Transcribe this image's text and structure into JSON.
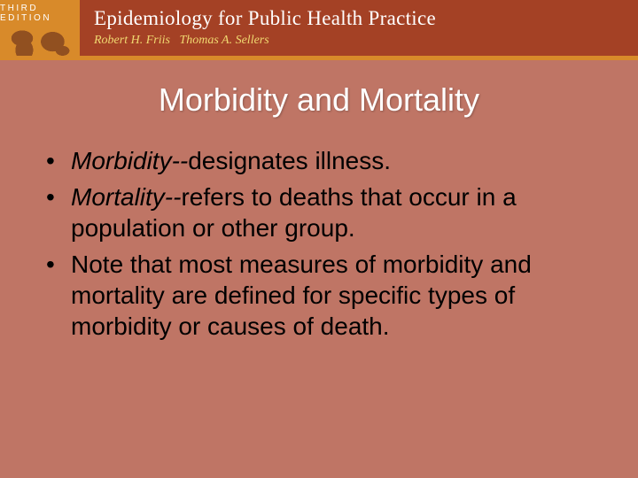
{
  "header": {
    "edition_label": "THIRD EDITION",
    "book_title": "Epidemiology for Public Health Practice",
    "author1": "Robert H. Friis",
    "author2": "Thomas A. Sellers",
    "colors": {
      "badge_bg": "#d88a2a",
      "header_bg": "#a44125",
      "author_color": "#f0d870",
      "divider": "#d88a2a"
    }
  },
  "slide": {
    "title": "Morbidity and Mortality",
    "background": "#bf7565",
    "title_color": "#ffffff",
    "text_color": "#000000",
    "title_fontsize": 36,
    "body_fontsize": 28,
    "bullets": [
      {
        "term": "Morbidity--",
        "text": "designates illness."
      },
      {
        "term": "Mortality--",
        "text": "refers to deaths that occur in a population or other group."
      },
      {
        "term": "",
        "text": "Note that most measures of morbidity and mortality are defined for specific types of morbidity or causes of death."
      }
    ]
  }
}
